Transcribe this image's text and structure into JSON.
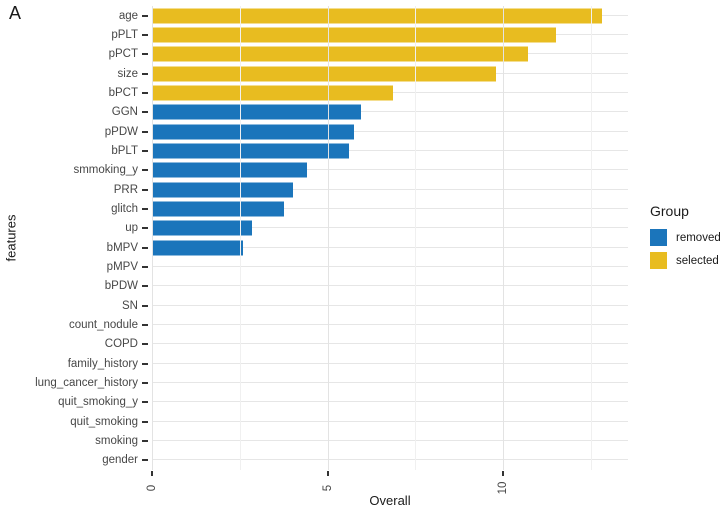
{
  "panel_label": "A",
  "axes": {
    "x_title": "Overall",
    "y_title": "features",
    "x_max": 13.55,
    "x_ticks": [
      {
        "value": 0,
        "label": "0"
      },
      {
        "value": 5,
        "label": "5"
      },
      {
        "value": 10,
        "label": "10"
      }
    ],
    "x_minor_gridlines": [
      2.5,
      7.5,
      12.5
    ]
  },
  "legend": {
    "title": "Group",
    "items": [
      {
        "label": "removed",
        "color": "#1B75BB"
      },
      {
        "label": "selected",
        "color": "#E8BC20"
      }
    ]
  },
  "colors": {
    "removed": "#1B75BB",
    "selected": "#E8BC20",
    "grid_major": "#e3e3e3",
    "grid_minor": "#f0f0f0",
    "axis_text": "#474747"
  },
  "chart_data": {
    "type": "bar",
    "orientation": "horizontal",
    "title": "",
    "xlabel": "Overall",
    "ylabel": "features",
    "xlim": [
      0,
      13.55
    ],
    "grid": true,
    "legend_position": "right",
    "categories": [
      "age",
      "pPLT",
      "pPCT",
      "size",
      "bPCT",
      "GGN",
      "pPDW",
      "bPLT",
      "smmoking_y",
      "PRR",
      "glitch",
      "up",
      "bMPV",
      "pMPV",
      "bPDW",
      "SN",
      "count_nodule",
      "COPD",
      "family_history",
      "lung_cancer_history",
      "quit_smoking_y",
      "quit_smoking",
      "smoking",
      "gender"
    ],
    "values": [
      12.8,
      11.5,
      10.7,
      9.8,
      6.85,
      5.95,
      5.75,
      5.6,
      4.4,
      4.0,
      3.75,
      2.85,
      2.6,
      0,
      0,
      0,
      0,
      0,
      0,
      0,
      0,
      0,
      0,
      0
    ],
    "groups": [
      "selected",
      "selected",
      "selected",
      "selected",
      "selected",
      "removed",
      "removed",
      "removed",
      "removed",
      "removed",
      "removed",
      "removed",
      "removed",
      null,
      null,
      null,
      null,
      null,
      null,
      null,
      null,
      null,
      null,
      null
    ]
  }
}
